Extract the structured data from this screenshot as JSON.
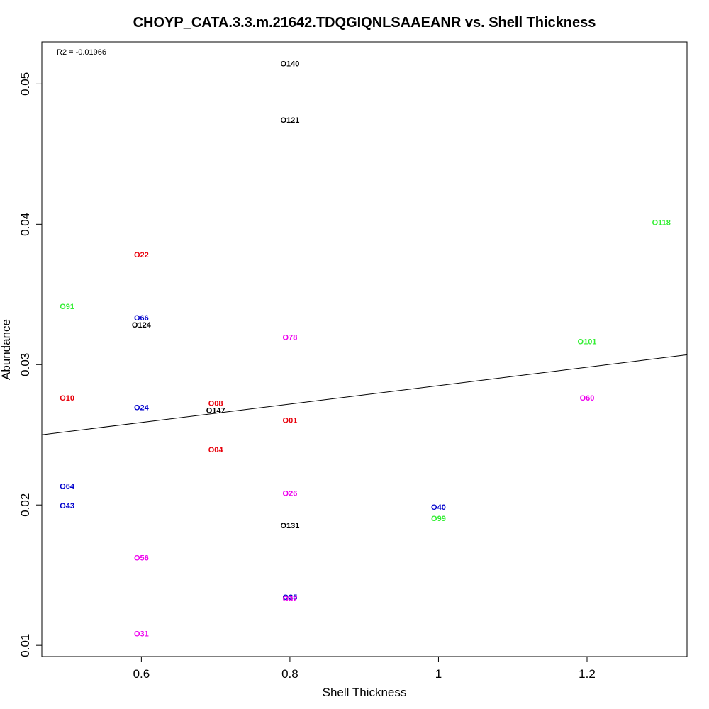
{
  "chart_data": {
    "type": "scatter",
    "title": "CHOYP_CATA.3.3.m.21642.TDQGIQNLSAAEANR vs. Shell Thickness",
    "xlabel": "Shell Thickness",
    "ylabel": "Abundance",
    "annotation": "R2 = -0.01966",
    "xlim": [
      0.466,
      1.3346
    ],
    "ylim": [
      0.0092,
      0.053
    ],
    "x_ticks": [
      0.6,
      0.8,
      1.0,
      1.2
    ],
    "y_ticks": [
      0.01,
      0.02,
      0.03,
      0.04,
      0.05
    ],
    "regression_line": {
      "x": [
        0.466,
        1.3346
      ],
      "y": [
        0.025,
        0.0307
      ]
    },
    "colors": {
      "red": "#e8000b",
      "green": "#33ee33",
      "blue": "#0000cc",
      "magenta": "#ee00ee",
      "black": "#000000"
    },
    "points": [
      {
        "label": "O140",
        "x": 0.8,
        "y": 0.0514,
        "color": "black"
      },
      {
        "label": "O121",
        "x": 0.8,
        "y": 0.0474,
        "color": "black"
      },
      {
        "label": "O118",
        "x": 1.3,
        "y": 0.0401,
        "color": "green"
      },
      {
        "label": "O22",
        "x": 0.6,
        "y": 0.0378,
        "color": "red"
      },
      {
        "label": "O91",
        "x": 0.5,
        "y": 0.0341,
        "color": "green"
      },
      {
        "label": "O66",
        "x": 0.6,
        "y": 0.0333,
        "color": "blue"
      },
      {
        "label": "O124",
        "x": 0.6,
        "y": 0.0328,
        "color": "black"
      },
      {
        "label": "O78",
        "x": 0.8,
        "y": 0.0319,
        "color": "magenta"
      },
      {
        "label": "O101",
        "x": 1.2,
        "y": 0.0316,
        "color": "green"
      },
      {
        "label": "O10",
        "x": 0.5,
        "y": 0.0276,
        "color": "red"
      },
      {
        "label": "O60",
        "x": 1.2,
        "y": 0.0276,
        "color": "magenta"
      },
      {
        "label": "O08",
        "x": 0.7,
        "y": 0.0272,
        "color": "red"
      },
      {
        "label": "O24",
        "x": 0.6,
        "y": 0.0269,
        "color": "blue"
      },
      {
        "label": "O147",
        "x": 0.7,
        "y": 0.0267,
        "color": "black"
      },
      {
        "label": "O01",
        "x": 0.8,
        "y": 0.026,
        "color": "red"
      },
      {
        "label": "O04",
        "x": 0.7,
        "y": 0.0239,
        "color": "red"
      },
      {
        "label": "O64",
        "x": 0.5,
        "y": 0.0213,
        "color": "blue"
      },
      {
        "label": "O26",
        "x": 0.8,
        "y": 0.0208,
        "color": "magenta"
      },
      {
        "label": "O43",
        "x": 0.5,
        "y": 0.0199,
        "color": "blue"
      },
      {
        "label": "O40",
        "x": 1.0,
        "y": 0.0198,
        "color": "blue"
      },
      {
        "label": "O99",
        "x": 1.0,
        "y": 0.019,
        "color": "green"
      },
      {
        "label": "O131",
        "x": 0.8,
        "y": 0.0185,
        "color": "black"
      },
      {
        "label": "O56",
        "x": 0.6,
        "y": 0.0162,
        "color": "magenta"
      },
      {
        "label": "O35",
        "x": 0.8,
        "y": 0.0134,
        "color": "blue"
      },
      {
        "label": "O37",
        "x": 0.8,
        "y": 0.0133,
        "color": "magenta"
      },
      {
        "label": "O31",
        "x": 0.6,
        "y": 0.0108,
        "color": "magenta"
      }
    ]
  }
}
